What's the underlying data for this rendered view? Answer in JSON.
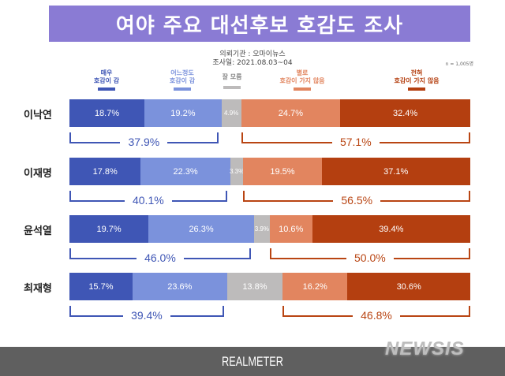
{
  "title": "여야 주요 대선후보 호감도 조사",
  "meta": {
    "client": "의뢰기관 : 오마이뉴스",
    "survey_date": "조사일: 2021.08.03~04",
    "sample_size": "n = 1,005명"
  },
  "legend": [
    {
      "label_line1": "매우",
      "label_line2": "호감이 감",
      "color": "#3f56b5"
    },
    {
      "label_line1": "어느정도",
      "label_line2": "호감이 감",
      "color": "#7b92dc"
    },
    {
      "label_line1": "잘 모름",
      "label_line2": "",
      "color": "#bdbbbb"
    },
    {
      "label_line1": "별로",
      "label_line2": "호감이 가지 않음",
      "color": "#e2855f"
    },
    {
      "label_line1": "전혀",
      "label_line2": "호감이 가지 않음",
      "color": "#b43f10"
    }
  ],
  "rows": [
    {
      "name": "이낙연",
      "values": [
        "18.7%",
        "19.2%",
        "4.9%",
        "24.7%",
        "32.4%"
      ],
      "positive_total": "37.9%",
      "negative_total": "57.1%"
    },
    {
      "name": "이재명",
      "values": [
        "17.8%",
        "22.3%",
        "3.3%",
        "19.5%",
        "37.1%"
      ],
      "positive_total": "40.1%",
      "negative_total": "56.5%"
    },
    {
      "name": "윤석열",
      "values": [
        "19.7%",
        "26.3%",
        "3.9%",
        "10.6%",
        "39.4%"
      ],
      "positive_total": "46.0%",
      "negative_total": "50.0%"
    },
    {
      "name": "최재형",
      "values": [
        "15.7%",
        "23.6%",
        "13.8%",
        "16.2%",
        "30.6%"
      ],
      "positive_total": "39.4%",
      "negative_total": "46.8%"
    }
  ],
  "footer": {
    "brand": "REALMETER",
    "watermark": "NEWSIS"
  },
  "chart_data": {
    "type": "bar",
    "orientation": "horizontal",
    "stacked": true,
    "title": "여야 주요 대선후보 호감도 조사",
    "subtitle": "의뢰기관 : 오마이뉴스 / 조사일: 2021.08.03~04",
    "note": "n = 1,005명",
    "categories": [
      "이낙연",
      "이재명",
      "윤석열",
      "최재형"
    ],
    "series": [
      {
        "name": "매우 호감이 감",
        "color": "#3f56b5",
        "values": [
          18.7,
          17.8,
          19.7,
          15.7
        ]
      },
      {
        "name": "어느정도 호감이 감",
        "color": "#7b92dc",
        "values": [
          19.2,
          22.3,
          26.3,
          23.6
        ]
      },
      {
        "name": "잘 모름",
        "color": "#bdbbbb",
        "values": [
          4.9,
          3.3,
          3.9,
          13.8
        ]
      },
      {
        "name": "별로 호감이 가지 않음",
        "color": "#e2855f",
        "values": [
          24.7,
          19.5,
          10.6,
          16.2
        ]
      },
      {
        "name": "전혀 호감이 가지 않음",
        "color": "#b43f10",
        "values": [
          32.4,
          37.1,
          39.4,
          30.6
        ]
      }
    ],
    "annotations": {
      "positive_totals": [
        37.9,
        40.1,
        46.0,
        39.4
      ],
      "negative_totals": [
        57.1,
        56.5,
        50.0,
        46.8
      ]
    },
    "xlabel": "",
    "ylabel": "",
    "xlim": [
      0,
      100
    ],
    "legend_position": "top",
    "grid": false,
    "source": "REALMETER"
  }
}
